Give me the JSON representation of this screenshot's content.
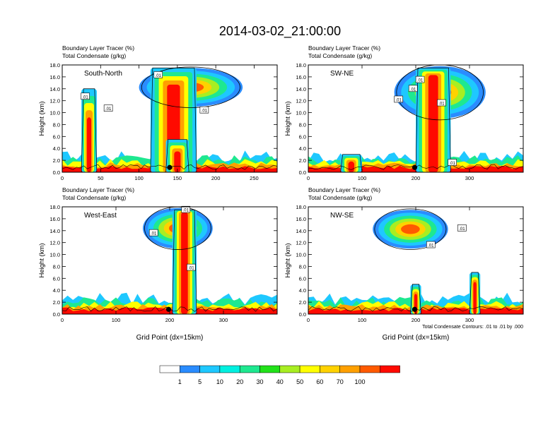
{
  "title": "2014-03-02_21:00:00",
  "chart_data": {
    "type": "heatmap",
    "panels": [
      {
        "label": "South-North",
        "var1": "Boundary Layer Tracer",
        "unit1": "(%)",
        "var2": "Total Condensate",
        "unit2": "(g/kg)",
        "xlim": [
          0,
          280
        ],
        "xticks": [
          "0",
          "50",
          "100",
          "150",
          "200",
          "250"
        ],
        "xtick_values": [
          0,
          50,
          100,
          150,
          200,
          250
        ],
        "ylim": [
          0,
          18
        ],
        "ylabel": "Height (km)",
        "xlabel": "",
        "marker_x": 140,
        "contour_labels": [
          {
            "text": ".01",
            "x": 125,
            "y": 16.3
          },
          {
            "text": ".01",
            "x": 30,
            "y": 12.7
          },
          {
            "text": ".01",
            "x": 60,
            "y": 10.7
          },
          {
            "text": ".01",
            "x": 185,
            "y": 10.4
          }
        ],
        "plumes": [
          {
            "x": [
              25,
              45
            ],
            "top": 14,
            "core": 8
          },
          {
            "x": [
              115,
              175
            ],
            "top": 17.5,
            "core": 14
          },
          {
            "x": [
              135,
              165
            ],
            "top": 5.5,
            "core": 3
          }
        ],
        "anvils": [
          {
            "x": [
              100,
              235
            ],
            "y": [
              11,
              17.5
            ]
          }
        ]
      },
      {
        "label": "SW-NE",
        "var1": "Boundary Layer Tracer",
        "unit1": "(%)",
        "var2": "Total Condensate",
        "unit2": "(g/kg)",
        "xlim": [
          0,
          400
        ],
        "xticks": [
          "0",
          "100",
          "200",
          "300"
        ],
        "xtick_values": [
          0,
          100,
          200,
          300
        ],
        "ylim": [
          0,
          18
        ],
        "ylabel": "Height (km)",
        "xlabel": "",
        "marker_x": 198,
        "contour_labels": [
          {
            "text": ".01",
            "x": 208,
            "y": 15.5
          },
          {
            "text": ".01",
            "x": 195,
            "y": 14.0
          },
          {
            "text": ".01",
            "x": 168,
            "y": 12.2
          },
          {
            "text": ".01",
            "x": 248,
            "y": 11.6
          },
          {
            "text": ".01",
            "x": 268,
            "y": 1.6
          }
        ],
        "plumes": [
          {
            "x": [
              200,
              265
            ],
            "top": 17.5,
            "core": 16
          },
          {
            "x": [
              60,
              100
            ],
            "top": 3,
            "core": 1.5
          }
        ],
        "anvils": [
          {
            "x": [
              160,
              330
            ],
            "y": [
              9,
              17.8
            ]
          }
        ]
      },
      {
        "label": "West-East",
        "var1": "Boundary Layer Tracer",
        "unit1": "(%)",
        "var2": "Total Condensate",
        "unit2": "(g/kg)",
        "xlim": [
          0,
          400
        ],
        "xticks": [
          "0",
          "100",
          "200",
          "300"
        ],
        "xtick_values": [
          0,
          100,
          200,
          300
        ],
        "ylim": [
          0,
          18
        ],
        "ylabel": "Height (km)",
        "xlabel": "Grid Point (dx=15km)",
        "marker_x": 198,
        "contour_labels": [
          {
            "text": ".01",
            "x": 230,
            "y": 17.5
          },
          {
            "text": ".01",
            "x": 170,
            "y": 13.6
          },
          {
            "text": ".01",
            "x": 240,
            "y": 7.8
          }
        ],
        "plumes": [
          {
            "x": [
              205,
              250
            ],
            "top": 17.5,
            "core": 17
          }
        ],
        "anvils": [
          {
            "x": [
              150,
              280
            ],
            "y": [
              11,
              17.8
            ]
          }
        ]
      },
      {
        "label": "NW-SE",
        "var1": "Boundary Layer Tracer",
        "unit1": "(%)",
        "var2": "Total Condensate",
        "unit2": "(g/kg)",
        "xlim": [
          0,
          400
        ],
        "xticks": [
          "0",
          "100",
          "200",
          "300"
        ],
        "xtick_values": [
          0,
          100,
          200,
          300
        ],
        "ylim": [
          0,
          18
        ],
        "ylabel": "Height (km)",
        "xlabel": "Grid Point (dx=15km)",
        "marker_x": 198,
        "note": "Total Condensate Contours: .01 to .01 by .000",
        "contour_labels": [
          {
            "text": ".01",
            "x": 286,
            "y": 14.4
          },
          {
            "text": ".01",
            "x": 228,
            "y": 11.6
          }
        ],
        "plumes": [
          {
            "x": [
              300,
              320
            ],
            "top": 7,
            "core": 5
          },
          {
            "x": [
              190,
              210
            ],
            "top": 5,
            "core": 3
          }
        ],
        "anvils": [
          {
            "x": [
              120,
              260
            ],
            "y": [
              11,
              17.5
            ]
          }
        ]
      }
    ],
    "colorbar": {
      "colors": [
        "#ffffff",
        "#2a8cff",
        "#1ec8ff",
        "#00f0e0",
        "#1ee890",
        "#22e21a",
        "#a8ee22",
        "#ffff00",
        "#ffd200",
        "#ffa000",
        "#ff5a00",
        "#ff0a00"
      ],
      "labels": [
        "1",
        "5",
        "10",
        "20",
        "30",
        "40",
        "50",
        "60",
        "70",
        "100"
      ]
    }
  }
}
